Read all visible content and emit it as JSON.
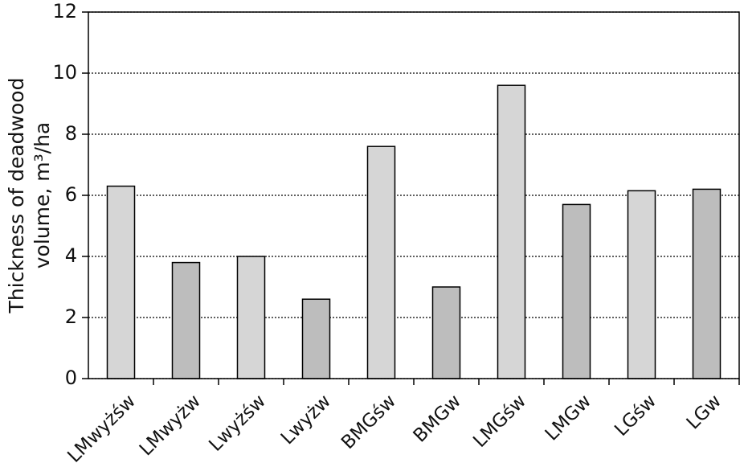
{
  "chart_data": {
    "type": "bar",
    "y_label": [
      "Thickness of deadwood",
      "volume, m³/ha"
    ],
    "categories": [
      "LMwyżśw",
      "LMwyżw",
      "Lwyżśw",
      "Lwyżw",
      "BMGśw",
      "BMGw",
      "LMGśw",
      "LMGw",
      "LGśw",
      "LGw"
    ],
    "values": [
      6.3,
      3.8,
      4.0,
      2.6,
      7.6,
      3.0,
      9.6,
      5.7,
      6.15,
      6.2
    ],
    "colors": [
      "#d6d6d6",
      "#bdbdbd",
      "#d6d6d6",
      "#bdbdbd",
      "#d6d6d6",
      "#bdbdbd",
      "#d6d6d6",
      "#bdbdbd",
      "#d6d6d6",
      "#bdbdbd"
    ],
    "ylim": [
      0,
      12
    ],
    "yticks": [
      0,
      2,
      4,
      6,
      8,
      10,
      12
    ],
    "grid": true
  }
}
